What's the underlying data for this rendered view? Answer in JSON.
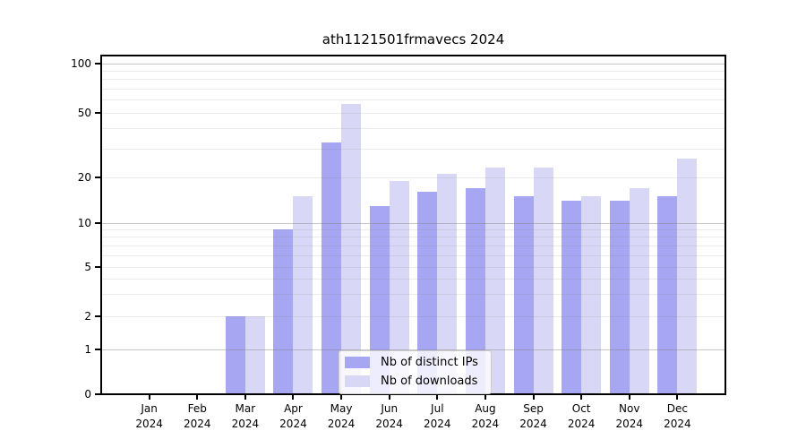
{
  "title": "ath1121501frmavecs 2024",
  "chart_data": {
    "type": "bar",
    "title": "ath1121501frmavecs 2024",
    "categories": [
      "Jan 2024",
      "Feb 2024",
      "Mar 2024",
      "Apr 2024",
      "May 2024",
      "Jun 2024",
      "Jul 2024",
      "Aug 2024",
      "Sep 2024",
      "Oct 2024",
      "Nov 2024",
      "Dec 2024"
    ],
    "series": [
      {
        "name": "Nb of distinct IPs",
        "color": "#a6a6f2",
        "values": [
          0,
          0,
          2,
          9,
          33,
          13,
          16,
          17,
          15,
          14,
          14,
          15
        ]
      },
      {
        "name": "Nb of downloads",
        "color": "#d8d8f6",
        "values": [
          0,
          0,
          2,
          15,
          57,
          19,
          21,
          23,
          23,
          15,
          17,
          26
        ]
      }
    ],
    "yticks": [
      0,
      1,
      2,
      5,
      10,
      20,
      50,
      100
    ],
    "ylim": [
      0,
      100
    ],
    "xlabel": "",
    "ylabel": "",
    "y_scale": "log-like (0,1,2,5,10,20,50,100)",
    "grid": true,
    "legend_position": "inside-bottom-center"
  },
  "colors": {
    "background": "#ffffff",
    "axis": "#000000",
    "grid_major": "#c8c8c8",
    "grid_minor": "#ececec",
    "legend_border": "#cccccc",
    "bar_ips": "#a6a6f2",
    "bar_downloads": "#d8d8f6"
  }
}
